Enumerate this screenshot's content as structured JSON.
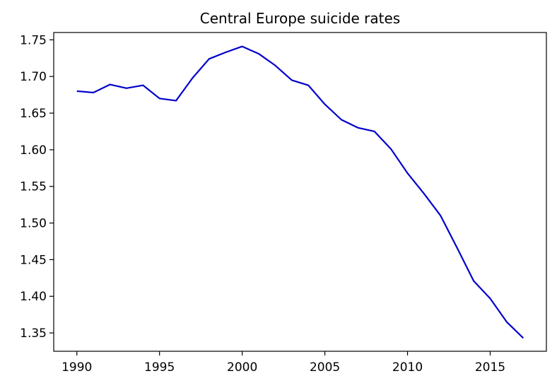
{
  "chart_data": {
    "type": "line",
    "title": "Central Europe suicide rates",
    "xlabel": "",
    "ylabel": "",
    "xlim": [
      1988.6,
      2018.4
    ],
    "ylim": [
      1.325,
      1.76
    ],
    "x_ticks": [
      1990,
      1995,
      2000,
      2005,
      2010,
      2015
    ],
    "y_ticks": [
      1.35,
      1.4,
      1.45,
      1.5,
      1.55,
      1.6,
      1.65,
      1.7,
      1.75
    ],
    "x_tick_labels": [
      "1990",
      "1995",
      "2000",
      "2005",
      "2010",
      "2015"
    ],
    "y_tick_labels": [
      "1.35",
      "1.40",
      "1.45",
      "1.50",
      "1.55",
      "1.60",
      "1.65",
      "1.70",
      "1.75"
    ],
    "grid": false,
    "legend": "none",
    "series": [
      {
        "color": "#0000cc",
        "x": [
          1990,
          1991,
          1992,
          1993,
          1994,
          1995,
          1996,
          1997,
          1998,
          1999,
          2000,
          2001,
          2002,
          2003,
          2004,
          2005,
          2006,
          2007,
          2008,
          2009,
          2010,
          2011,
          2012,
          2013,
          2014,
          2015,
          2016,
          2017
        ],
        "values": [
          1.68,
          1.678,
          1.689,
          1.684,
          1.688,
          1.67,
          1.667,
          1.698,
          1.724,
          1.733,
          1.741,
          1.731,
          1.715,
          1.695,
          1.688,
          1.662,
          1.641,
          1.63,
          1.625,
          1.601,
          1.568,
          1.54,
          1.51,
          1.466,
          1.421,
          1.397,
          1.365,
          1.343
        ]
      }
    ]
  }
}
